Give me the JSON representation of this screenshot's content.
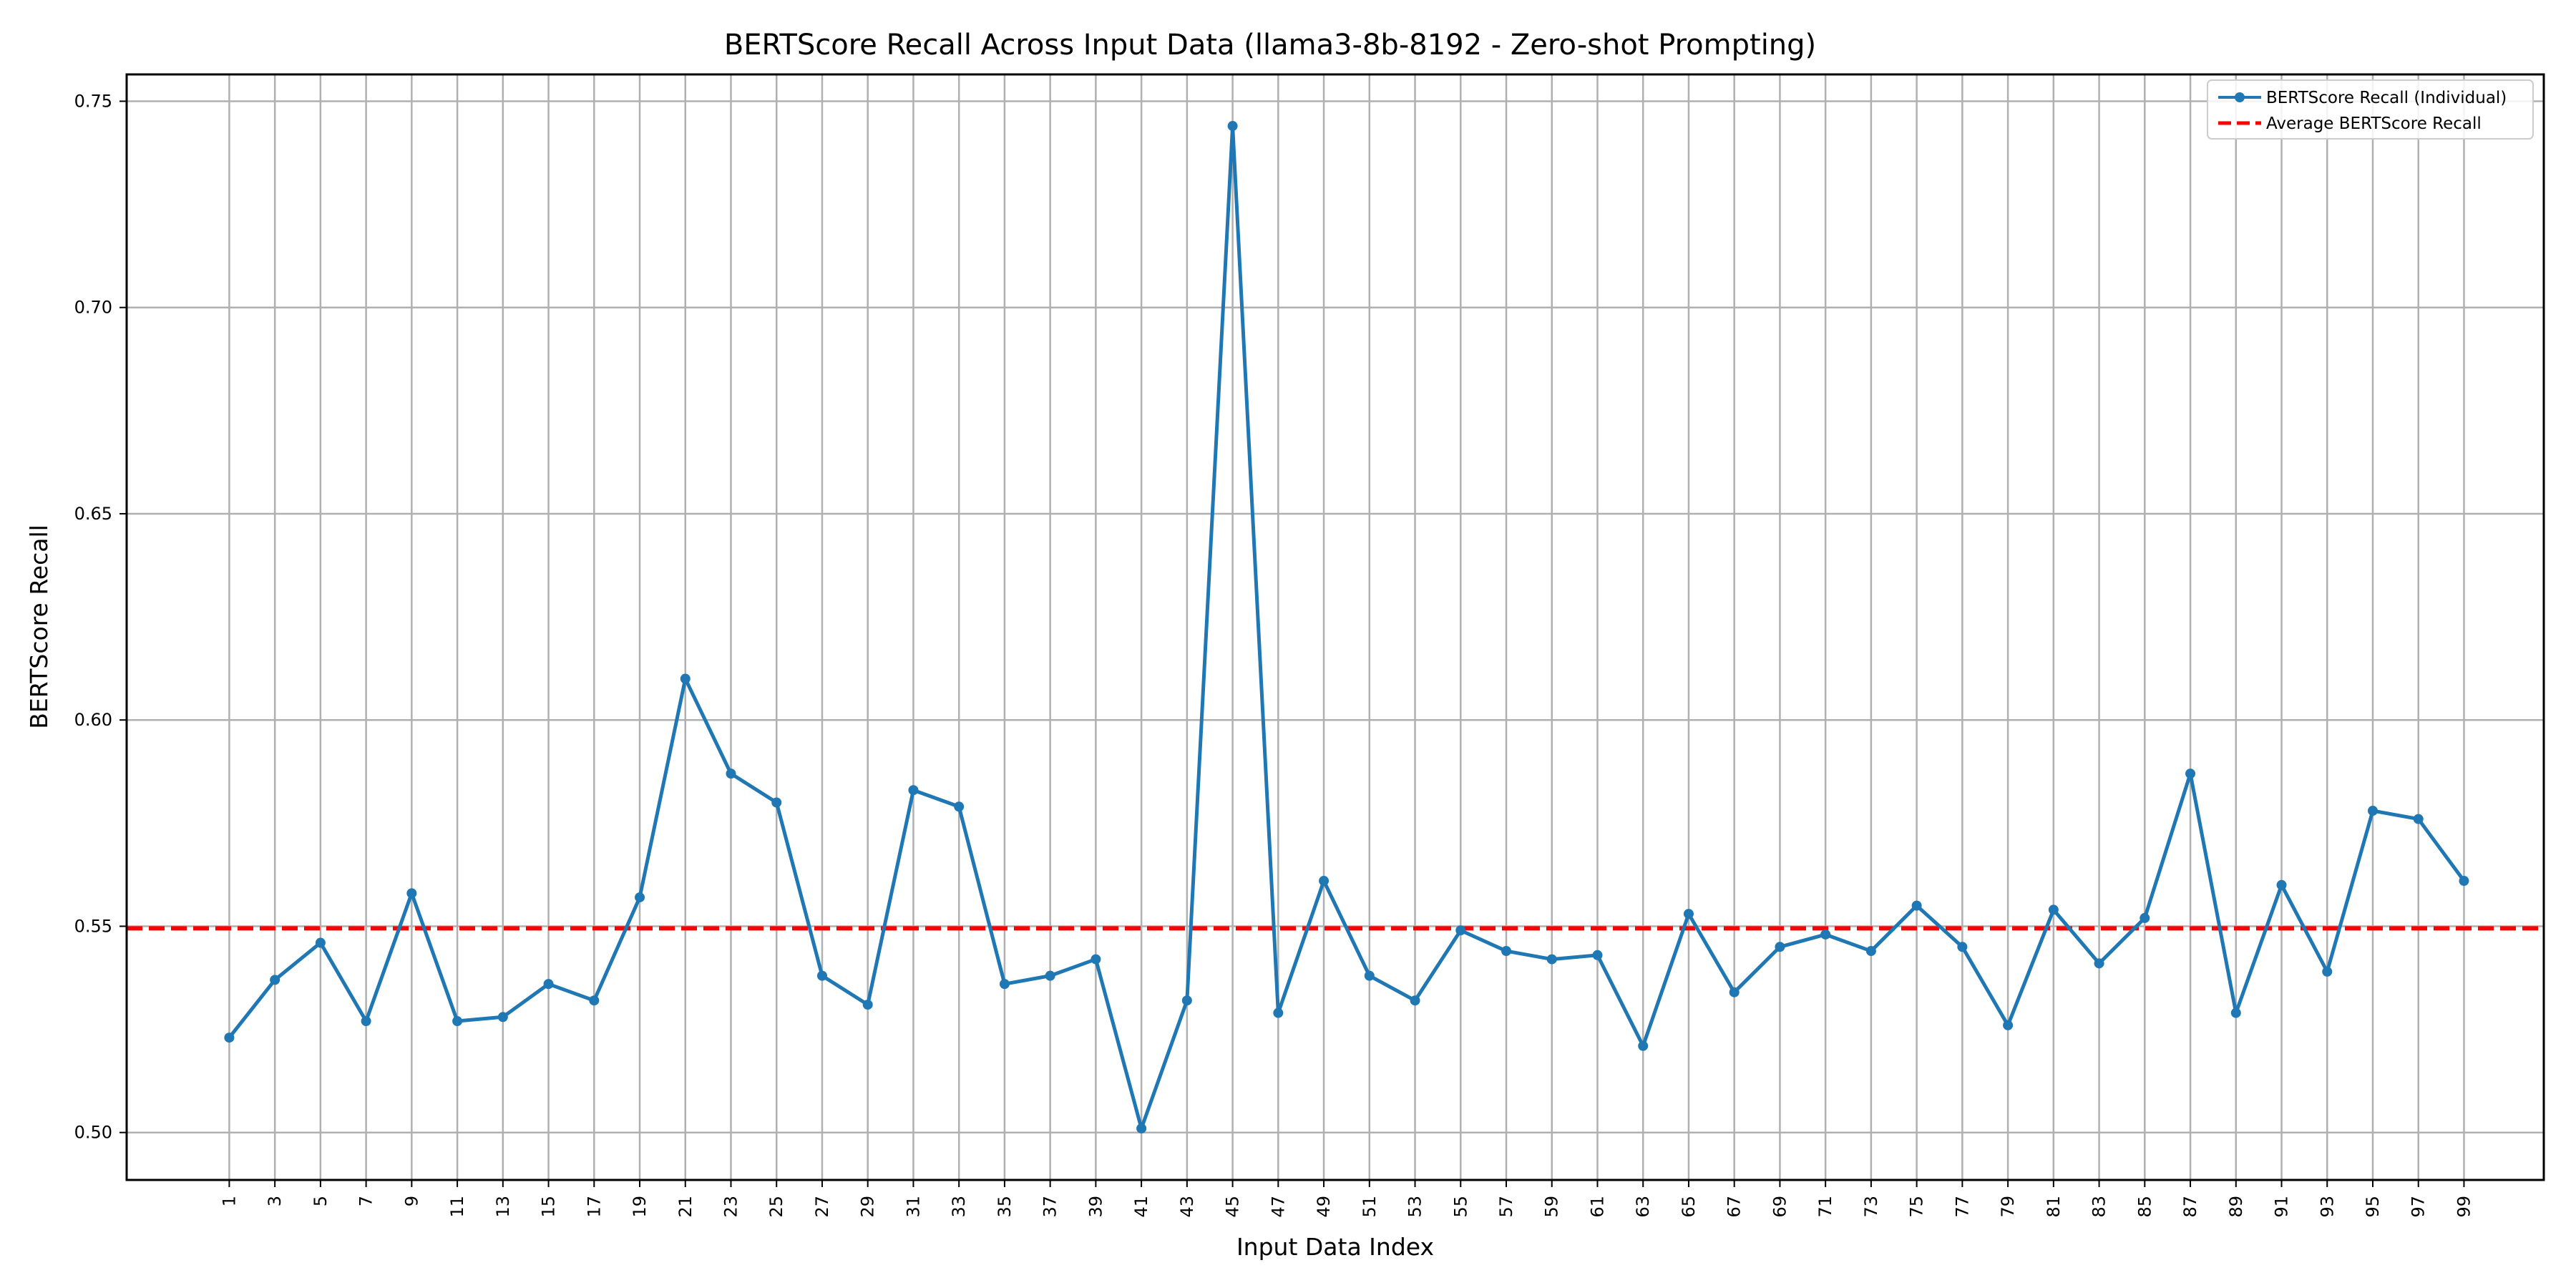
{
  "chart_data": {
    "type": "line",
    "title": "BERTScore Recall Across Input Data (llama3-8b-8192 - Zero-shot Prompting)",
    "xlabel": "Input Data Index",
    "ylabel": "BERTScore Recall",
    "xlim": [
      -3.5,
      102.5
    ],
    "ylim": [
      0.4885,
      0.7565
    ],
    "x_ticks": [
      1,
      3,
      5,
      7,
      9,
      11,
      13,
      15,
      17,
      19,
      21,
      23,
      25,
      27,
      29,
      31,
      33,
      35,
      37,
      39,
      41,
      43,
      45,
      47,
      49,
      51,
      53,
      55,
      57,
      59,
      61,
      63,
      65,
      67,
      69,
      71,
      73,
      75,
      77,
      79,
      81,
      83,
      85,
      87,
      89,
      91,
      93,
      95,
      97,
      99
    ],
    "y_ticks": [
      "0.50",
      "0.55",
      "0.60",
      "0.65",
      "0.70",
      "0.75"
    ],
    "grid": true,
    "legend_position": "top-right",
    "series": [
      {
        "name": "BERTScore Recall (Individual)",
        "color": "#1f77b4",
        "marker": "circle",
        "x": [
          1,
          3,
          5,
          7,
          9,
          11,
          13,
          15,
          17,
          19,
          21,
          23,
          25,
          27,
          29,
          31,
          33,
          35,
          37,
          39,
          41,
          43,
          45,
          47,
          49,
          51,
          53,
          55,
          57,
          59,
          61,
          63,
          65,
          67,
          69,
          71,
          73,
          75,
          77,
          79,
          81,
          83,
          85,
          87,
          89,
          91,
          93,
          95,
          97,
          99
        ],
        "y": [
          0.523,
          0.537,
          0.546,
          0.527,
          0.558,
          0.527,
          0.528,
          0.536,
          0.532,
          0.557,
          0.61,
          0.587,
          0.58,
          0.538,
          0.531,
          0.583,
          0.579,
          0.536,
          0.538,
          0.542,
          0.501,
          0.532,
          0.744,
          0.529,
          0.561,
          0.538,
          0.532,
          0.549,
          0.544,
          0.542,
          0.543,
          0.521,
          0.553,
          0.534,
          0.545,
          0.548,
          0.544,
          0.555,
          0.545,
          0.526,
          0.554,
          0.541,
          0.552,
          0.587,
          0.529,
          0.56,
          0.539,
          0.578,
          0.576,
          0.561
        ]
      }
    ],
    "average": {
      "name": "Average BERTScore Recall",
      "color": "#ff0000",
      "style": "dashed",
      "value": 0.5495
    }
  }
}
